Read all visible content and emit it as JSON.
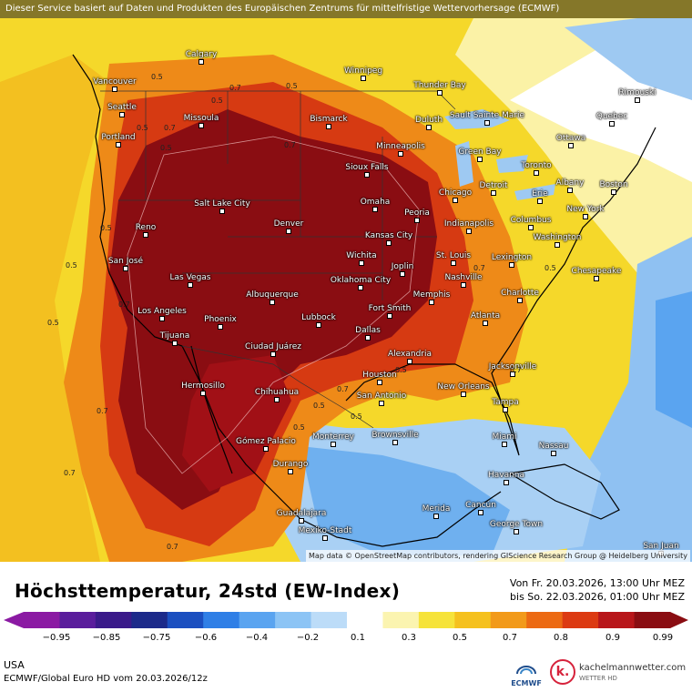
{
  "header": {
    "service_note": "Dieser Service basiert auf Daten und Produkten des Europäischen Zentrums für mittelfristige Wettervorhersage (ECMWF)"
  },
  "map": {
    "credit": "Map data © OpenStreetMap contributors, rendering GIScience Research Group @ Heidelberg University",
    "cities": [
      {
        "name": "Vancouver"
      },
      {
        "name": "Calgary"
      },
      {
        "name": "Winnipeg"
      },
      {
        "name": "Thunder Bay"
      },
      {
        "name": "Rimouski"
      },
      {
        "name": "Seattle"
      },
      {
        "name": "Missoula"
      },
      {
        "name": "Bismarck"
      },
      {
        "name": "Duluth"
      },
      {
        "name": "Sault Sainte Marie"
      },
      {
        "name": "Quebec"
      },
      {
        "name": "Portland"
      },
      {
        "name": "Ottawa"
      },
      {
        "name": "Minneapolis"
      },
      {
        "name": "Green Bay"
      },
      {
        "name": "Toronto"
      },
      {
        "name": "Sioux Falls"
      },
      {
        "name": "Detroit"
      },
      {
        "name": "Albany"
      },
      {
        "name": "Boston"
      },
      {
        "name": "Salt Lake City"
      },
      {
        "name": "Omaha"
      },
      {
        "name": "Chicago"
      },
      {
        "name": "Erie"
      },
      {
        "name": "New York"
      },
      {
        "name": "Reno"
      },
      {
        "name": "Denver"
      },
      {
        "name": "Peoria"
      },
      {
        "name": "Indianapolis"
      },
      {
        "name": "Columbus"
      },
      {
        "name": "Kansas City"
      },
      {
        "name": "Washington"
      },
      {
        "name": "San José"
      },
      {
        "name": "Wichita"
      },
      {
        "name": "St. Louis"
      },
      {
        "name": "Lexington"
      },
      {
        "name": "Joplin"
      },
      {
        "name": "Las Vegas"
      },
      {
        "name": "Oklahoma City"
      },
      {
        "name": "Nashville"
      },
      {
        "name": "Chesapeake"
      },
      {
        "name": "Albuquerque"
      },
      {
        "name": "Fort Smith"
      },
      {
        "name": "Memphis"
      },
      {
        "name": "Charlotte"
      },
      {
        "name": "Los Angeles"
      },
      {
        "name": "Phoenix"
      },
      {
        "name": "Lubbock"
      },
      {
        "name": "Dallas"
      },
      {
        "name": "Atlanta"
      },
      {
        "name": "Tijuana"
      },
      {
        "name": "Ciudad Juárez"
      },
      {
        "name": "Alexandria"
      },
      {
        "name": "Jacksonville"
      },
      {
        "name": "Hermosillo"
      },
      {
        "name": "Houston"
      },
      {
        "name": "Chihuahua"
      },
      {
        "name": "San Antonio"
      },
      {
        "name": "New Orleans"
      },
      {
        "name": "Tampa"
      },
      {
        "name": "Brownsville"
      },
      {
        "name": "Miami"
      },
      {
        "name": "Gómez Palacio"
      },
      {
        "name": "Monterrey"
      },
      {
        "name": "Nassau"
      },
      {
        "name": "Durango"
      },
      {
        "name": "Havanna"
      },
      {
        "name": "Guadalajara"
      },
      {
        "name": "Merida"
      },
      {
        "name": "Cancún"
      },
      {
        "name": "Mexiko-Stadt"
      },
      {
        "name": "George Town"
      },
      {
        "name": "San Juan"
      }
    ],
    "contour_labels": [
      "0.5",
      "0.7",
      "0.5",
      "0.5",
      "0.7",
      "0.5",
      "0.5",
      "0.7",
      "0.5",
      "0.5",
      "0.5",
      "0.7",
      "0.7",
      "0.7",
      "0.7",
      "0.5",
      "0.5",
      "0.7",
      "0.5",
      "0.5",
      "0.7",
      "0.5",
      "0.7"
    ]
  },
  "footer": {
    "title": "Höchsttemperatur, 24std (EW-Index)",
    "period_from": "Von Fr. 20.03.2026, 13:00 Uhr MEZ",
    "period_to": "bis So. 22.03.2026, 01:00 Uhr MEZ",
    "region": "USA",
    "model": "ECMWF/Global Euro HD vom  20.03.2026/12z",
    "ecmwf_label": "ECMWF",
    "brand": "kachelmannwetter.com",
    "brand_sub": "WETTER HD"
  },
  "legend": {
    "ticks": [
      "−0.95",
      "−0.85",
      "−0.75",
      "−0.6",
      "−0.4",
      "−0.2",
      "0.1",
      "0.3",
      "0.5",
      "0.7",
      "0.8",
      "0.9",
      "0.99"
    ],
    "colors": [
      "#8b1aa3",
      "#5a1d9c",
      "#3a1a8a",
      "#1c2a8a",
      "#1b4fc0",
      "#2f7fe6",
      "#5aa4f0",
      "#8cc4f5",
      "#bcdcf8",
      "#ffffff",
      "#fbf4b0",
      "#f6e33a",
      "#f5c11e",
      "#f29a1a",
      "#ec6a13",
      "#dc3a12",
      "#b8161a",
      "#8a0d12"
    ]
  }
}
